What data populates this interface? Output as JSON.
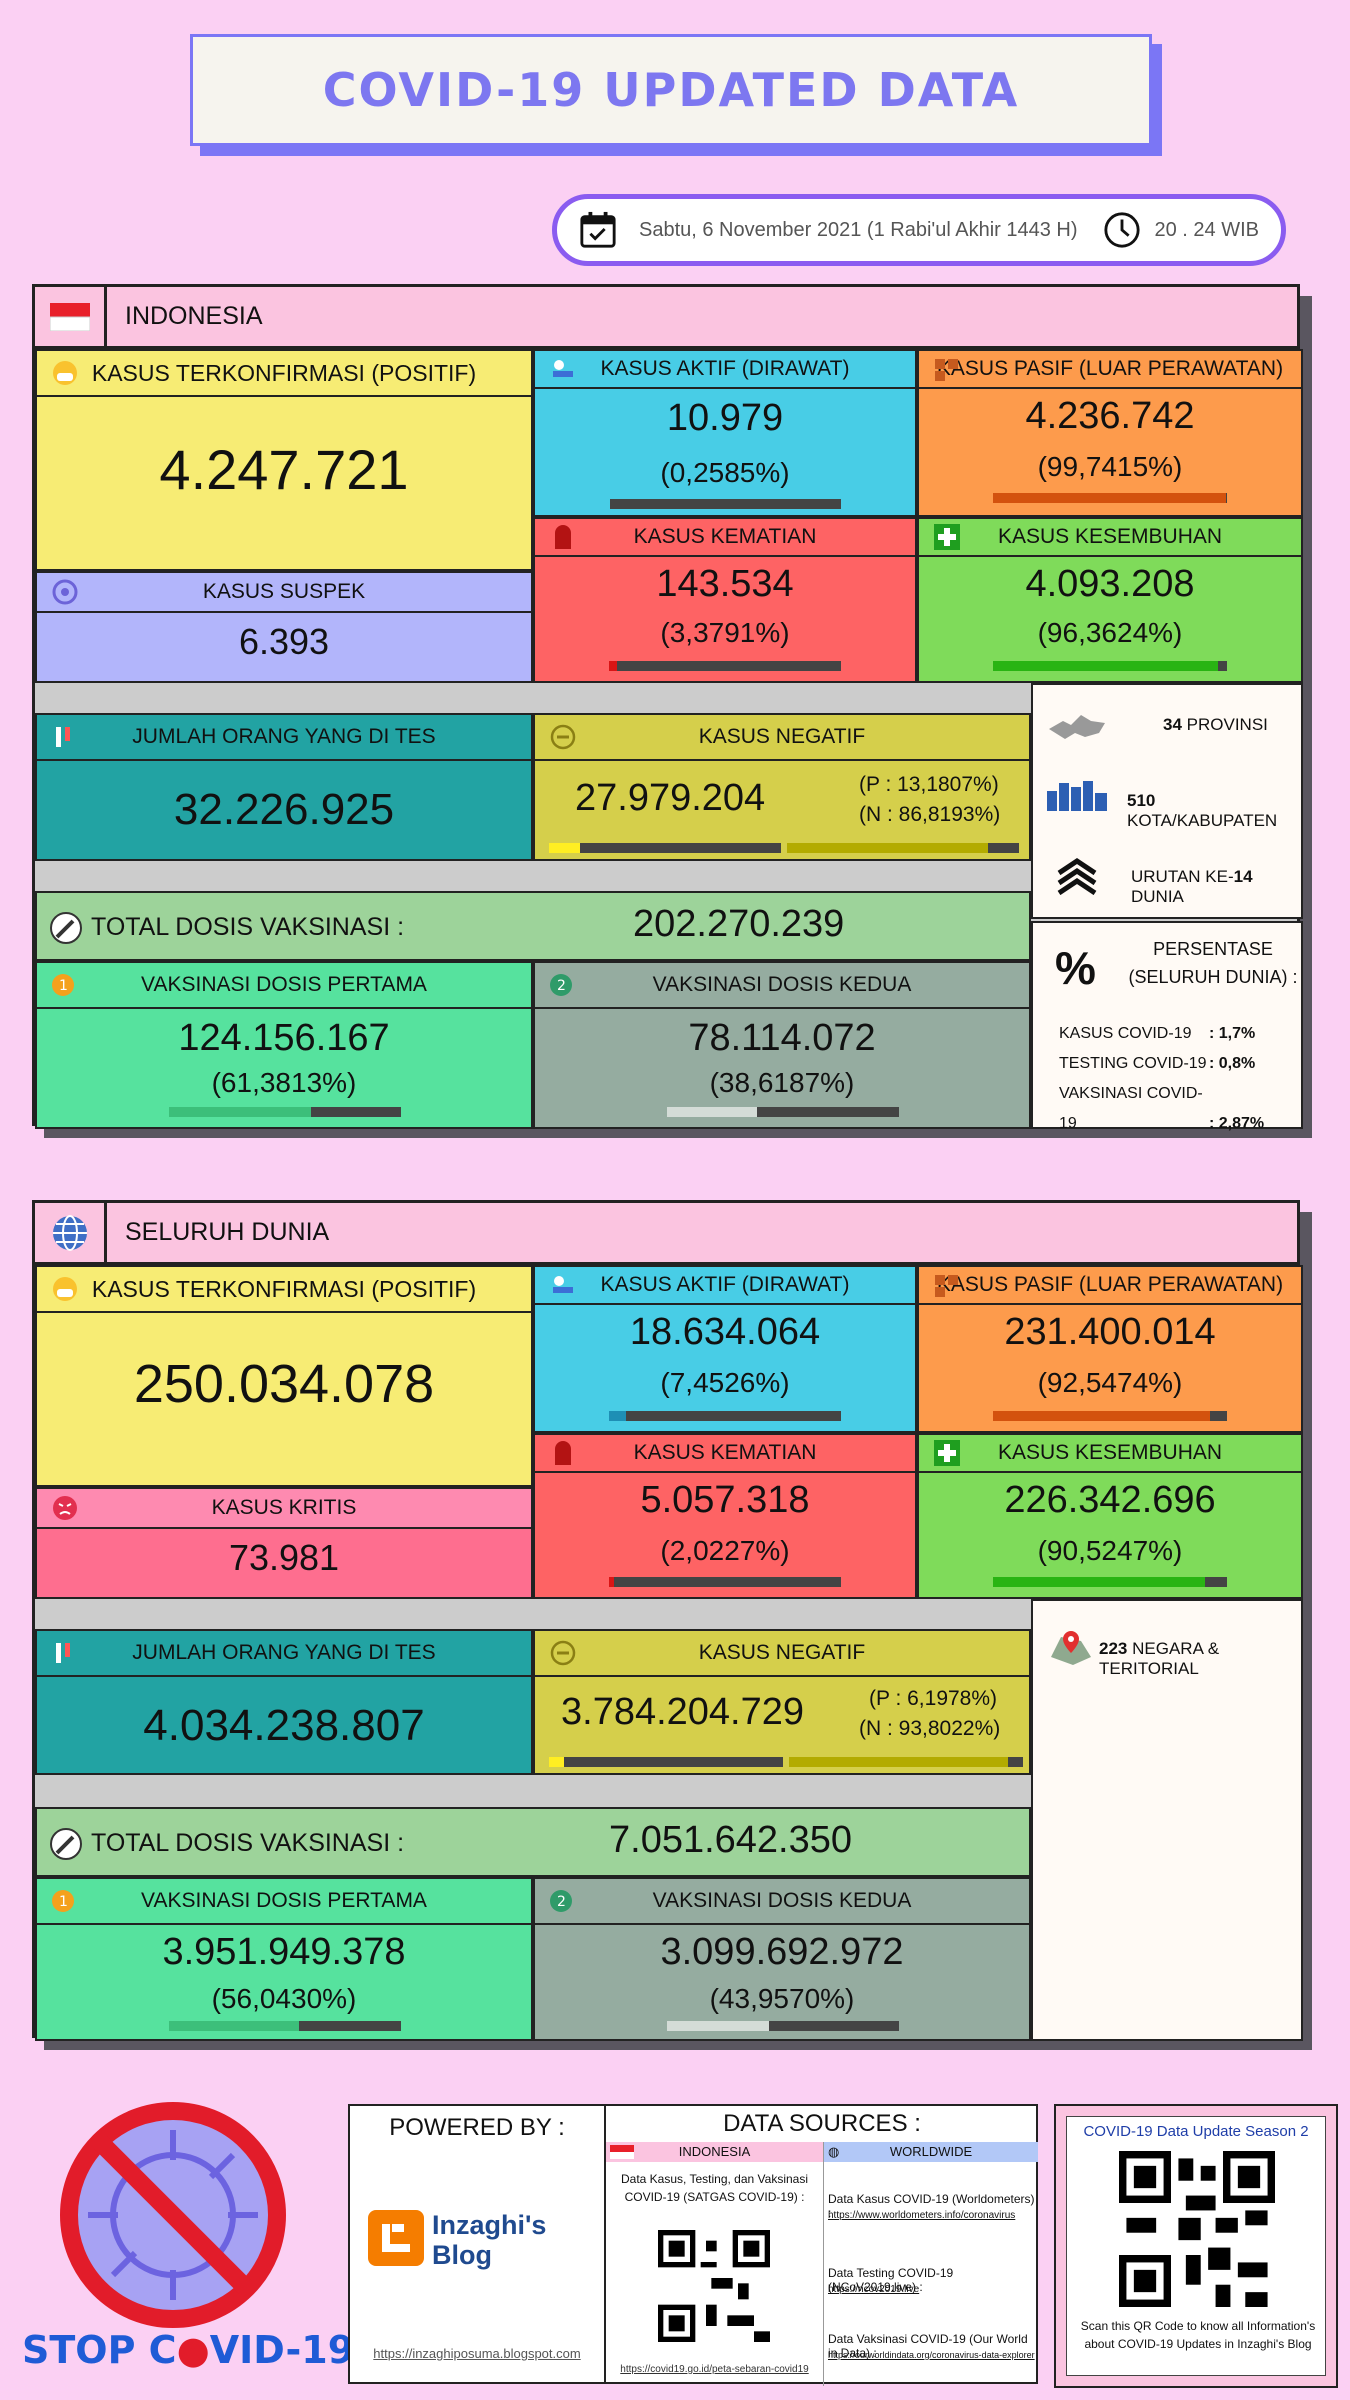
{
  "title": "COVID-19 UPDATED DATA",
  "date": "Sabtu, 6 November 2021 (1 Rabi'ul Akhir 1443 H)",
  "time": "20 . 24 WIB",
  "indonesia": {
    "label": "INDONESIA",
    "confirmed": {
      "label": "KASUS TERKONFIRMASI (POSITIF)",
      "value": "4.247.721"
    },
    "suspect": {
      "label": "KASUS SUSPEK",
      "value": "6.393"
    },
    "active": {
      "label": "KASUS AKTIF (DIRAWAT)",
      "value": "10.979",
      "pct": "(0,2585%)",
      "frac": 0.002585
    },
    "passive": {
      "label": "KASUS PASIF (LUAR PERAWATAN)",
      "value": "4.236.742",
      "pct": "(99,7415%)",
      "frac": 0.997415
    },
    "deaths": {
      "label": "KASUS KEMATIAN",
      "value": "143.534",
      "pct": "(3,3791%)",
      "frac": 0.033791
    },
    "recovered": {
      "label": "KASUS KESEMBUHAN",
      "value": "4.093.208",
      "pct": "(96,3624%)",
      "frac": 0.963624
    },
    "tested": {
      "label": "JUMLAH ORANG YANG DI TES",
      "value": "32.226.925"
    },
    "negative": {
      "label": "KASUS NEGATIF",
      "value": "27.979.204",
      "p": "(P : 13,1807%)",
      "n": "(N : 86,8193%)",
      "pfrac": 0.131807,
      "nfrac": 0.868193
    },
    "vaccine_total": {
      "label": "TOTAL DOSIS VAKSINASI :",
      "value": "202.270.239"
    },
    "dose1": {
      "label": "VAKSINASI DOSIS PERTAMA",
      "value": "124.156.167",
      "pct": "(61,3813%)",
      "frac": 0.613813
    },
    "dose2": {
      "label": "VAKSINASI DOSIS KEDUA",
      "value": "78.114.072",
      "pct": "(38,6187%)",
      "frac": 0.386187
    },
    "info": {
      "prov_num": "34",
      "prov_txt": "PROVINSI",
      "city_num": "510",
      "city_txt": "KOTA/KABUPATEN",
      "rank_pre": "URUTAN KE-",
      "rank_num": "14",
      "rank_post": "DUNIA",
      "pct_title1": "PERSENTASE",
      "pct_title2": "(SELURUH DUNIA) :",
      "rows": [
        {
          "k": "KASUS COVID-19",
          "v": ": 1,7%"
        },
        {
          "k": "TESTING COVID-19",
          "v": ": 0,8%"
        },
        {
          "k": "VAKSINASI COVID-19",
          "v": ": 2,87%"
        }
      ]
    }
  },
  "world": {
    "label": "SELURUH DUNIA",
    "confirmed": {
      "label": "KASUS TERKONFIRMASI (POSITIF)",
      "value": "250.034.078"
    },
    "critical": {
      "label": "KASUS KRITIS",
      "value": "73.981"
    },
    "active": {
      "label": "KASUS AKTIF (DIRAWAT)",
      "value": "18.634.064",
      "pct": "(7,4526%)",
      "frac": 0.074526
    },
    "passive": {
      "label": "KASUS PASIF (LUAR PERAWATAN)",
      "value": "231.400.014",
      "pct": "(92,5474%)",
      "frac": 0.925474
    },
    "deaths": {
      "label": "KASUS KEMATIAN",
      "value": "5.057.318",
      "pct": "(2,0227%)",
      "frac": 0.020227
    },
    "recovered": {
      "label": "KASUS KESEMBUHAN",
      "value": "226.342.696",
      "pct": "(90,5247%)",
      "frac": 0.905247
    },
    "tested": {
      "label": "JUMLAH ORANG YANG DI TES",
      "value": "4.034.238.807"
    },
    "negative": {
      "label": "KASUS NEGATIF",
      "value": "3.784.204.729",
      "p": "(P : 6,1978%)",
      "n": "(N : 93,8022%)",
      "pfrac": 0.061978,
      "nfrac": 0.938022
    },
    "vaccine_total": {
      "label": "TOTAL DOSIS VAKSINASI :",
      "value": "7.051.642.350"
    },
    "dose1": {
      "label": "VAKSINASI DOSIS PERTAMA",
      "value": "3.951.949.378",
      "pct": "(56,0430%)",
      "frac": 0.56043
    },
    "dose2": {
      "label": "VAKSINASI DOSIS KEDUA",
      "value": "3.099.692.972",
      "pct": "(43,9570%)",
      "frac": 0.43957
    },
    "info": {
      "count": "223",
      "txt": "NEGARA & TERITORIAL"
    }
  },
  "footer": {
    "stop_pre": "STOP C",
    "stop_post": "VID-19",
    "powered_by": "POWERED BY :",
    "blog_name1": "Inzaghi's",
    "blog_name2": "Blog",
    "blog_url": "https://inzaghiposuma.blogspot.com",
    "data_sources": "DATA SOURCES :",
    "src_indo": "INDONESIA",
    "src_world": "WORLDWIDE",
    "indo_desc": "Data Kasus, Testing, dan Vaksinasi COVID-19 (SATGAS COVID-19) :",
    "indo_url": "https://covid19.go.id/peta-sebaran-covid19",
    "w1_desc": "Data Kasus COVID-19 (Worldometers) :",
    "w1_url": "https://www.worldometers.info/coronavirus",
    "w2_desc": "Data Testing COVID-19 (NCoV2019.live) :",
    "w2_url": "https://ncov2019.live",
    "w3_desc": "Data Vaksinasi COVID-19 (Our World in Data) :",
    "w3_url": "https://ourworldindata.org/coronavirus-data-explorer",
    "qr_title": "COVID-19 Data Update Season 2",
    "qr_desc": "Scan this QR Code to know all Information's about COVID-19 Updates in Inzaghi's Blog"
  }
}
